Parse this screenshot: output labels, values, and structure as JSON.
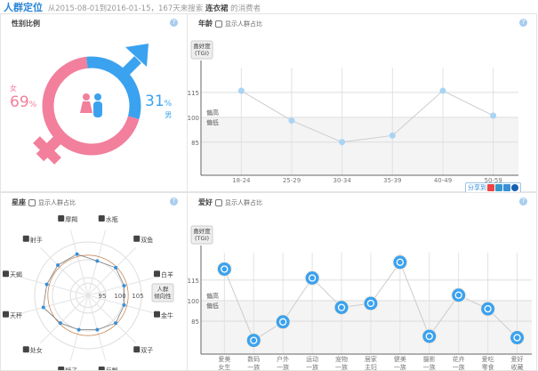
{
  "header": {
    "title": "人群定位",
    "range": "从2015-08-01到2016-01-15，167天来搜索",
    "keyword": "连衣裙",
    "suffix": "的消费者"
  },
  "gender": {
    "title": "性别比例",
    "female_label": "女",
    "female_pct": "69",
    "male_label": "男",
    "male_pct": "31",
    "pct_sign": "%",
    "female_value": 69,
    "male_value": 31,
    "female_color": "#f27f9c",
    "male_color": "#3ba2ef"
  },
  "show_ratio_label": "显示人群占比",
  "age": {
    "title": "年龄",
    "chart_data": {
      "type": "line",
      "ylabel": "喜好度\n(TGI)",
      "ylabel_lines": [
        "喜好度",
        "(TGI)"
      ],
      "band_labels": [
        "偏高",
        "偏低"
      ],
      "categories": [
        "18-24",
        "25-29",
        "30-34",
        "35-39",
        "40-49",
        "50-59"
      ],
      "values": [
        116,
        98,
        85,
        89,
        116,
        101
      ],
      "yticks": [
        85,
        100,
        115
      ],
      "ylim": [
        65,
        130
      ],
      "grid": true,
      "color": "#a8d4f5"
    }
  },
  "share": {
    "label": "分享到",
    "icons": [
      "weibo-icon",
      "qzone-icon",
      "star-icon",
      "renren-icon"
    ]
  },
  "constellation": {
    "title": "星座",
    "chart_data": {
      "type": "radar",
      "categories": [
        "水瓶",
        "双鱼",
        "白羊",
        "金牛",
        "双子",
        "巨蟹",
        "狮子",
        "处女",
        "天秤",
        "天蝎",
        "射手",
        "摩羯"
      ],
      "values": [
        100,
        101,
        100.5,
        100.5,
        101,
        100,
        100,
        101,
        103,
        102,
        102,
        102
      ],
      "rticks": [
        95,
        100,
        105
      ],
      "rlim": [
        90,
        107
      ],
      "axis_label": [
        "人群",
        "倾向性"
      ],
      "color": "#3a8fd8"
    }
  },
  "hobby": {
    "title": "爱好",
    "chart_data": {
      "type": "line",
      "ylabel_lines": [
        "喜好度",
        "(TGI)"
      ],
      "band_labels": [
        "偏高",
        "偏低"
      ],
      "categories": [
        [
          "爱美",
          "女生"
        ],
        [
          "数码",
          "一族"
        ],
        [
          "户外",
          "一族"
        ],
        [
          "运动",
          "一族"
        ],
        [
          "宠物",
          "一族"
        ],
        [
          "居家",
          "主妇"
        ],
        [
          "健美",
          "一族"
        ],
        [
          "摄影",
          "一族"
        ],
        [
          "花卉",
          "一族"
        ],
        [
          "爱吃",
          "零食"
        ],
        [
          "爱好",
          "收藏"
        ]
      ],
      "values": [
        123,
        71,
        84.5,
        116.5,
        95,
        98,
        128,
        74,
        104,
        94,
        73
      ],
      "yticks": [
        85,
        100,
        115
      ],
      "ylim": [
        61,
        135
      ],
      "grid": true,
      "color": "#3ba2ef"
    }
  }
}
